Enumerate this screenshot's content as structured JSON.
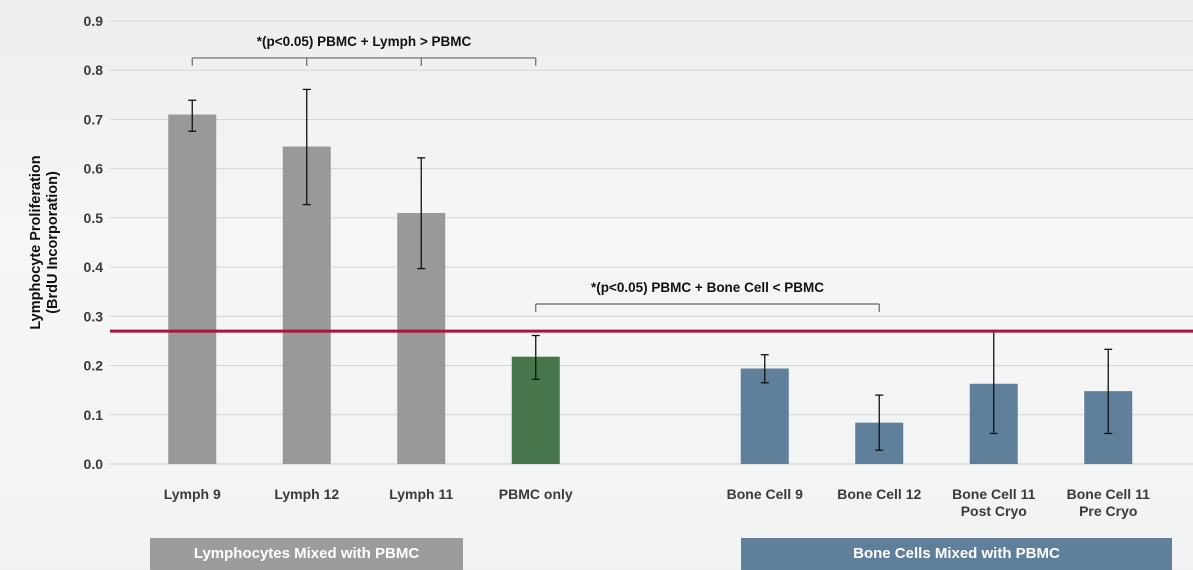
{
  "chart_data": {
    "type": "bar",
    "title": "",
    "xlabel": "",
    "ylabel": [
      "Lymphocyte Proliferation",
      "(BrdU Incorporation)"
    ],
    "ylim": [
      0,
      0.9
    ],
    "yticks": [
      "0.0",
      "0.1",
      "0.2",
      "0.3",
      "0.4",
      "0.5",
      "0.6",
      "0.7",
      "0.8",
      "0.9"
    ],
    "grid": true,
    "categories": [
      [
        "Lymph 9"
      ],
      [
        "Lymph 12"
      ],
      [
        "Lymph 11"
      ],
      [
        "PBMC only"
      ],
      [],
      [
        "Bone Cell 9"
      ],
      [
        "Bone Cell 12"
      ],
      [
        "Bone Cell 11",
        "Post Cryo"
      ],
      [
        "Bone Cell 11",
        "Pre Cryo"
      ]
    ],
    "values": [
      0.71,
      0.645,
      0.51,
      0.218,
      null,
      0.194,
      0.084,
      0.163,
      0.148
    ],
    "error_low": [
      0.676,
      0.527,
      0.397,
      0.172,
      null,
      0.165,
      0.028,
      0.062,
      0.062
    ],
    "error_high": [
      0.739,
      0.761,
      0.622,
      0.261,
      null,
      0.222,
      0.14,
      0.27,
      0.233
    ],
    "bar_colors": [
      "#999999",
      "#999999",
      "#999999",
      "#46764a",
      null,
      "#5f7f9b",
      "#5f7f9b",
      "#5f7f9b",
      "#5f7f9b"
    ],
    "reference_line": {
      "value": 0.27,
      "color": "#a8163c"
    },
    "annotations": [
      {
        "text": "*(p<0.05) PBMC + Lymph > PBMC",
        "y": 0.825,
        "ticks_at_categories": [
          0,
          1,
          2,
          3
        ]
      },
      {
        "text": "*(p<0.05) PBMC + Bone Cell < PBMC",
        "y": 0.325,
        "ticks_at_categories": [
          3,
          6
        ]
      }
    ],
    "groups": [
      {
        "label": "Lymphocytes Mixed with PBMC",
        "color": "#9c9c9c"
      },
      {
        "label": "Bone Cells Mixed with PBMC",
        "color": "#5f7f9b"
      }
    ]
  }
}
